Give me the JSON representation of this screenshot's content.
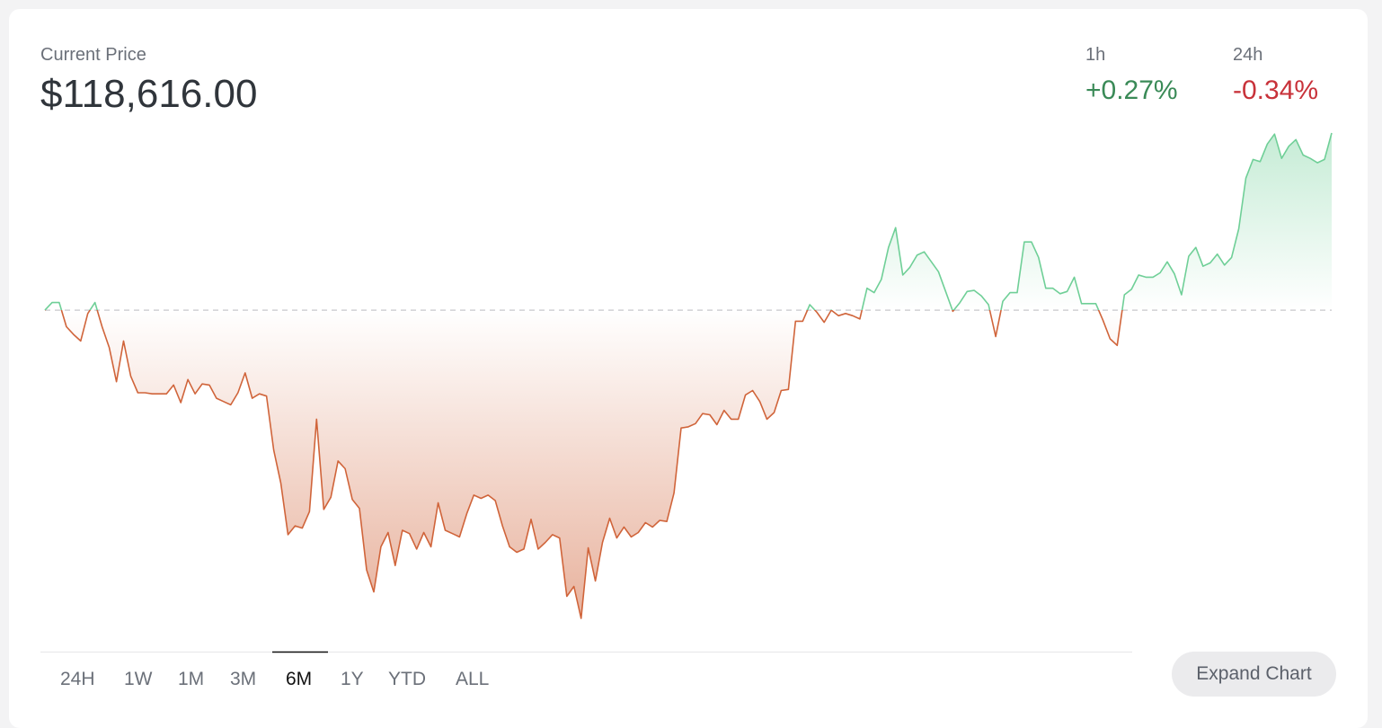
{
  "header": {
    "label": "Current Price",
    "price": "$118,616.00"
  },
  "changes": [
    {
      "period": "1h",
      "value": "+0.27%"
    },
    {
      "period": "24h",
      "value": "-0.34%"
    }
  ],
  "chart_data": {
    "type": "line",
    "values": [
      102500,
      103200,
      103200,
      101000,
      100300,
      99700,
      102200,
      103200,
      101000,
      99100,
      96000,
      99700,
      96500,
      95000,
      95000,
      94900,
      94900,
      94900,
      95700,
      94100,
      96200,
      94900,
      95800,
      95700,
      94500,
      94200,
      93900,
      95000,
      96800,
      94500,
      94900,
      94700,
      89800,
      86800,
      82100,
      82900,
      82700,
      84200,
      92600,
      84400,
      85500,
      88800,
      88100,
      85300,
      84500,
      78900,
      76900,
      81000,
      82300,
      79300,
      82500,
      82200,
      80800,
      82300,
      81000,
      85000,
      82500,
      82200,
      81900,
      84000,
      85700,
      85400,
      85700,
      85200,
      82900,
      81000,
      80500,
      80800,
      83500,
      80800,
      81400,
      82100,
      81800,
      76500,
      77400,
      74500,
      80900,
      77900,
      81400,
      83600,
      81800,
      82800,
      81900,
      82300,
      83200,
      82800,
      83400,
      83300,
      85900,
      91800,
      91900,
      92200,
      93100,
      93000,
      92100,
      93400,
      92600,
      92600,
      94800,
      95200,
      94200,
      92600,
      93200,
      95200,
      95300,
      101500,
      101500,
      103000,
      102300,
      101400,
      102500,
      102000,
      102200,
      102000,
      101700,
      104500,
      104100,
      105300,
      108200,
      110000,
      105700,
      106400,
      107500,
      107800,
      106900,
      106000,
      104200,
      102400,
      103200,
      104200,
      104300,
      103800,
      103000,
      100100,
      103300,
      104100,
      104100,
      108700,
      108700,
      107300,
      104500,
      104500,
      104000,
      104200,
      105500,
      103100,
      103100,
      103100,
      101600,
      99900,
      99300,
      103900,
      104400,
      105700,
      105500,
      105500,
      105900,
      106900,
      105800,
      103900,
      107400,
      108200,
      106500,
      106800,
      107600,
      106600,
      107300,
      109900,
      114500,
      116200,
      116000,
      117600,
      118500,
      116300,
      117400,
      118000,
      116600,
      116300,
      115900,
      116200,
      118600
    ],
    "ylim": [
      74500,
      118600
    ],
    "colors": {
      "up": "#6fcf97",
      "down": "#d0643a"
    }
  },
  "tabs": {
    "items": [
      "24H",
      "1W",
      "1M",
      "3M",
      "6M",
      "1Y",
      "YTD",
      "ALL"
    ],
    "selected": 4
  },
  "button": "Expand Chart"
}
